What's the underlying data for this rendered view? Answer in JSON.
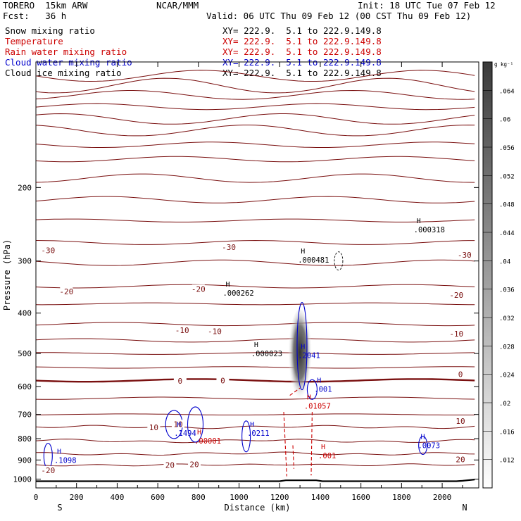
{
  "header": {
    "model": "TORERO  15km ARW",
    "center": "NCAR/MMM",
    "init": "Init: 18 UTC Tue 07 Feb 12",
    "fcst": "Fcst:   36 h",
    "valid": "Valid: 06 UTC Thu 09 Feb 12 (00 CST Thu 09 Feb 12)"
  },
  "fields": [
    {
      "name": "Snow mixing ratio",
      "xy": "XY= 222.9.  5.1 to 222.9.149.8",
      "name_color": "#000000",
      "xy_color": "#000000"
    },
    {
      "name": "Temperature",
      "xy": "XY= 222.9.  5.1 to 222.9.149.8",
      "name_color": "#cc0000",
      "xy_color": "#cc0000"
    },
    {
      "name": "Rain water mixing ratio",
      "xy": "XY= 222.9.  5.1 to 222.9.149.8",
      "name_color": "#cc0000",
      "xy_color": "#cc0000"
    },
    {
      "name": "Cloud water mixing ratio",
      "xy": "XY= 222.9.  5.1 to 222.9.149.8",
      "name_color": "#0000cc",
      "xy_color": "#0000cc"
    },
    {
      "name": "Cloud ice mixing ratio",
      "xy": "XY= 222.9.  5.1 to 222.9.149.8",
      "name_color": "#000000",
      "xy_color": "#000000"
    }
  ],
  "chart_data": {
    "type": "contour_cross_section",
    "xlabel": "Distance (km)",
    "ylabel": "Pressure (hPa)",
    "xlim": [
      0,
      2180
    ],
    "ylim": [
      1050,
      100
    ],
    "y_scale": "log",
    "x_ticks": [
      0,
      200,
      400,
      600,
      800,
      1000,
      1200,
      1400,
      1600,
      1800,
      2000
    ],
    "y_ticks": [
      200,
      300,
      400,
      500,
      600,
      700,
      800,
      900,
      1000
    ],
    "x_end_labels": {
      "left": "S",
      "right": "N"
    },
    "colorbar": {
      "unit": "g kg⁻¹",
      "ticks": [
        ".012",
        ".016",
        ".02",
        ".024",
        ".028",
        ".032",
        ".036",
        ".04",
        ".044",
        ".048",
        ".052",
        ".056",
        ".06",
        ".064"
      ],
      "min": 0.008,
      "max": 0.068
    },
    "temperature_labels": [
      {
        "x": 60,
        "p": 283,
        "text": "-30"
      },
      {
        "x": 950,
        "p": 278,
        "text": "-30"
      },
      {
        "x": 2110,
        "p": 290,
        "text": "-30"
      },
      {
        "x": 150,
        "p": 355,
        "text": "-20"
      },
      {
        "x": 800,
        "p": 350,
        "text": "-20"
      },
      {
        "x": 2070,
        "p": 362,
        "text": "-20"
      },
      {
        "x": 720,
        "p": 440,
        "text": "-10"
      },
      {
        "x": 880,
        "p": 442,
        "text": "-10"
      },
      {
        "x": 2070,
        "p": 448,
        "text": "-10"
      },
      {
        "x": 710,
        "p": 582,
        "text": "0"
      },
      {
        "x": 920,
        "p": 580,
        "text": "0"
      },
      {
        "x": 2090,
        "p": 560,
        "text": "0"
      },
      {
        "x": 580,
        "p": 752,
        "text": "10"
      },
      {
        "x": 700,
        "p": 738,
        "text": "10"
      },
      {
        "x": 2090,
        "p": 726,
        "text": "10"
      },
      {
        "x": 660,
        "p": 925,
        "text": "20"
      },
      {
        "x": 780,
        "p": 922,
        "text": "20"
      },
      {
        "x": 2090,
        "p": 897,
        "text": "20"
      },
      {
        "x": 60,
        "p": 952,
        "text": "-20"
      }
    ],
    "maxima": [
      {
        "x": 1060,
        "p": 500,
        "text": ".000023",
        "color": "#000000"
      },
      {
        "x": 920,
        "p": 358,
        "text": ".000262",
        "color": "#000000"
      },
      {
        "x": 1290,
        "p": 298,
        "text": ".000481",
        "color": "#000000"
      },
      {
        "x": 1860,
        "p": 252,
        "text": ".000318",
        "color": "#000000"
      },
      {
        "x": 1290,
        "p": 505,
        "text": ".2041",
        "color": "#0000cc"
      },
      {
        "x": 1370,
        "p": 608,
        "text": ".001",
        "color": "#0000cc"
      },
      {
        "x": 1320,
        "p": 667,
        "text": ".01057",
        "color": "#cc0000"
      },
      {
        "x": 680,
        "p": 776,
        "text": ".1494",
        "color": "#0000cc"
      },
      {
        "x": 780,
        "p": 810,
        "text": ".00001",
        "color": "#cc0000"
      },
      {
        "x": 1040,
        "p": 776,
        "text": ".0211",
        "color": "#0000cc"
      },
      {
        "x": 1880,
        "p": 830,
        "text": ".0073",
        "color": "#0000cc"
      },
      {
        "x": 1390,
        "p": 878,
        "text": ".001",
        "color": "#cc0000"
      },
      {
        "x": 90,
        "p": 900,
        "text": ".1098",
        "color": "#0000cc"
      }
    ]
  }
}
